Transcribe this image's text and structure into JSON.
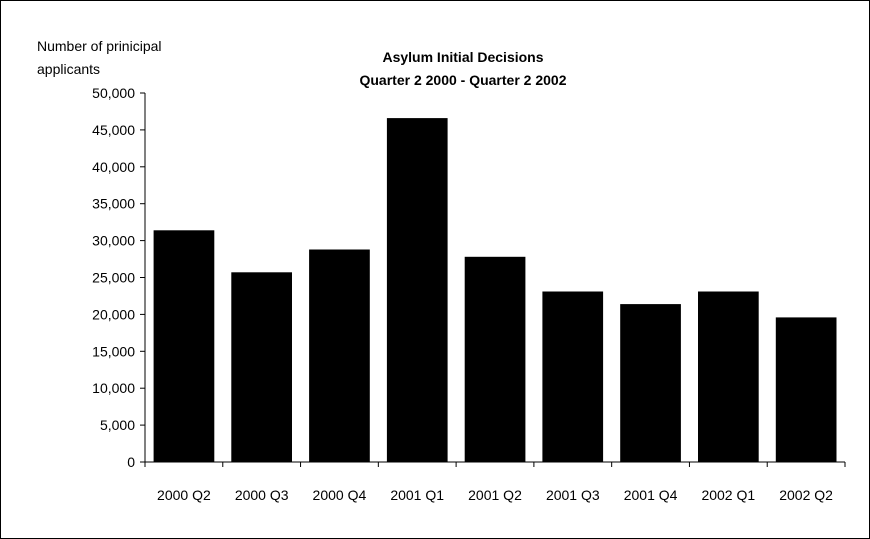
{
  "chart_data": {
    "type": "bar",
    "title": [
      "Asylum Initial Decisions",
      "Quarter 2 2000 - Quarter 2 2002"
    ],
    "ylabel": [
      "Number of prinicipal",
      "applicants"
    ],
    "xlabel": "",
    "categories": [
      "2000 Q2",
      "2000 Q3",
      "2000 Q4",
      "2001 Q1",
      "2001 Q2",
      "2001 Q3",
      "2001 Q4",
      "2002 Q1",
      "2002 Q2"
    ],
    "values": [
      31400,
      25700,
      28800,
      46600,
      27800,
      23100,
      21400,
      23100,
      19600
    ],
    "ylim": [
      0,
      50000
    ],
    "yticks": [
      0,
      5000,
      10000,
      15000,
      20000,
      25000,
      30000,
      35000,
      40000,
      45000,
      50000
    ],
    "ytick_labels": [
      "0",
      "5,000",
      "10,000",
      "15,000",
      "20,000",
      "25,000",
      "30,000",
      "35,000",
      "40,000",
      "45,000",
      "50,000"
    ],
    "grid": false,
    "legend": "none",
    "bar_color": "#000000"
  }
}
